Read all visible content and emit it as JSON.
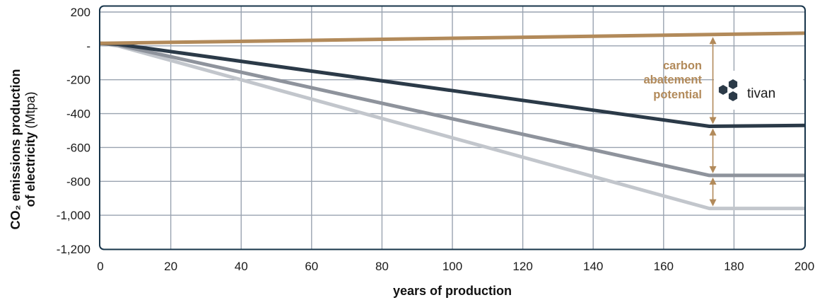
{
  "chart_data": {
    "type": "line",
    "xlabel": "years of production",
    "ylabel_bold": "CO₂ emissions production",
    "ylabel_line2_bold": "of electricity",
    "ylabel_line2_unit": "(Mtpa)",
    "xlim": [
      0,
      200
    ],
    "ylim": [
      -1200,
      200
    ],
    "x_ticks": [
      0,
      20,
      40,
      60,
      80,
      100,
      120,
      140,
      160,
      180,
      200
    ],
    "x_tick_labels": [
      "0",
      "20",
      "40",
      "60",
      "80",
      "100",
      "120",
      "140",
      "160",
      "180",
      "200"
    ],
    "y_ticks": [
      200,
      0,
      -200,
      -400,
      -600,
      -800,
      -1000,
      -1200
    ],
    "y_tick_labels": [
      "200",
      "-",
      "-200",
      "-400",
      "-600",
      "-800",
      "-1,000",
      "-1,200"
    ],
    "grid": true,
    "series": [
      {
        "color": "#b28a5a",
        "x": [
          0,
          200
        ],
        "y": [
          15,
          75
        ]
      },
      {
        "color": "#2b3a48",
        "x": [
          0,
          5,
          173,
          200
        ],
        "y": [
          15,
          10,
          -475,
          -470
        ]
      },
      {
        "color": "#8e939c",
        "x": [
          0,
          5,
          173,
          200
        ],
        "y": [
          15,
          5,
          -765,
          -765
        ]
      },
      {
        "color": "#c2c6cc",
        "x": [
          0,
          5,
          173,
          200
        ],
        "y": [
          15,
          0,
          -960,
          -960
        ]
      }
    ],
    "annotation": {
      "lines": [
        "carbon",
        "abatement",
        "potential"
      ],
      "color": "#b28a5a",
      "arrow_x": 173,
      "arrows": [
        [
          65,
          -475
        ],
        [
          -475,
          -765
        ],
        [
          -765,
          -960
        ]
      ]
    },
    "logo": {
      "text": "tivan",
      "icon": "hexagon-cluster-icon"
    }
  },
  "colors": {
    "frame": "#17344a",
    "grid": "#9aa3b0",
    "annotation": "#b28a5a"
  }
}
